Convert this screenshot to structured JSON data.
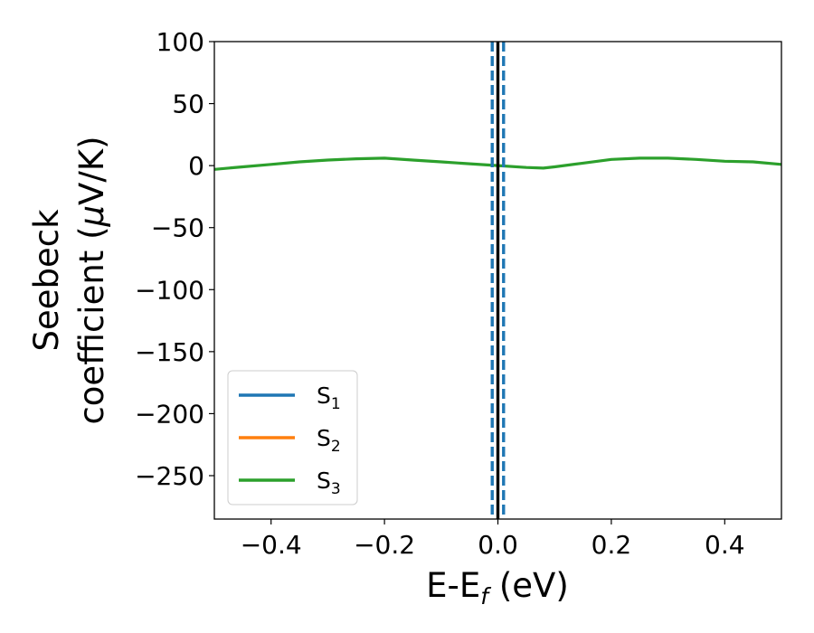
{
  "chart_data": {
    "type": "line",
    "xlabel": {
      "main": "E-E",
      "sub": "f",
      "tail": " (eV)"
    },
    "ylabel": {
      "line1": "Seebeck",
      "line2_prefix": "coefficient  (",
      "mu": "μ",
      "line2_suffix": "V/K)"
    },
    "xlim": [
      -0.5,
      0.5
    ],
    "ylim": [
      -285,
      100
    ],
    "x_ticks": [
      -0.4,
      -0.2,
      0.0,
      0.2,
      0.4
    ],
    "x_tick_labels": [
      "−0.4",
      "−0.2",
      "0.0",
      "0.2",
      "0.4"
    ],
    "y_ticks": [
      100,
      50,
      0,
      -50,
      -100,
      -150,
      -200,
      -250
    ],
    "y_tick_labels": [
      "100",
      "50",
      "0",
      "−50",
      "−100",
      "−150",
      "−200",
      "−250"
    ],
    "grid": false,
    "legend_placement": "bottom-left",
    "vlines": [
      {
        "x": 0.0,
        "style": "solid",
        "color": "#000000"
      },
      {
        "x": -0.01,
        "style": "dashed",
        "color": "#1f77b4"
      },
      {
        "x": 0.01,
        "style": "dashed",
        "color": "#1f77b4"
      }
    ],
    "series": [
      {
        "name": "S",
        "sub": "1",
        "color": "#1f77b4",
        "visible_in_plot": false,
        "x": [
          -0.5,
          -0.45,
          -0.4,
          -0.35,
          -0.3,
          -0.25,
          -0.2,
          -0.15,
          -0.1,
          -0.05,
          0.0,
          0.05,
          0.08,
          0.1,
          0.15,
          0.2,
          0.25,
          0.3,
          0.35,
          0.4,
          0.45,
          0.5
        ],
        "y": [
          -3,
          -1,
          1,
          3,
          4.5,
          5.5,
          6,
          4.5,
          3,
          1.5,
          0,
          -1.5,
          -2,
          -1,
          2,
          5,
          6,
          6,
          5,
          3.5,
          3,
          1
        ]
      },
      {
        "name": "S",
        "sub": "2",
        "color": "#ff7f0e",
        "visible_in_plot": false,
        "x": [
          -0.5,
          -0.45,
          -0.4,
          -0.35,
          -0.3,
          -0.25,
          -0.2,
          -0.15,
          -0.1,
          -0.05,
          0.0,
          0.05,
          0.08,
          0.1,
          0.15,
          0.2,
          0.25,
          0.3,
          0.35,
          0.4,
          0.45,
          0.5
        ],
        "y": [
          -3,
          -1,
          1,
          3,
          4.5,
          5.5,
          6,
          4.5,
          3,
          1.5,
          0,
          -1.5,
          -2,
          -1,
          2,
          5,
          6,
          6,
          5,
          3.5,
          3,
          1
        ]
      },
      {
        "name": "S",
        "sub": "3",
        "color": "#2ca02c",
        "visible_in_plot": true,
        "x": [
          -0.5,
          -0.45,
          -0.4,
          -0.35,
          -0.3,
          -0.25,
          -0.2,
          -0.15,
          -0.1,
          -0.05,
          0.0,
          0.05,
          0.08,
          0.1,
          0.15,
          0.2,
          0.25,
          0.3,
          0.35,
          0.4,
          0.45,
          0.5
        ],
        "y": [
          -3,
          -1,
          1,
          3,
          4.5,
          5.5,
          6,
          4.5,
          3,
          1.5,
          0,
          -1.5,
          -2,
          -1,
          2,
          5,
          6,
          6,
          5,
          3.5,
          3,
          1
        ]
      }
    ]
  }
}
